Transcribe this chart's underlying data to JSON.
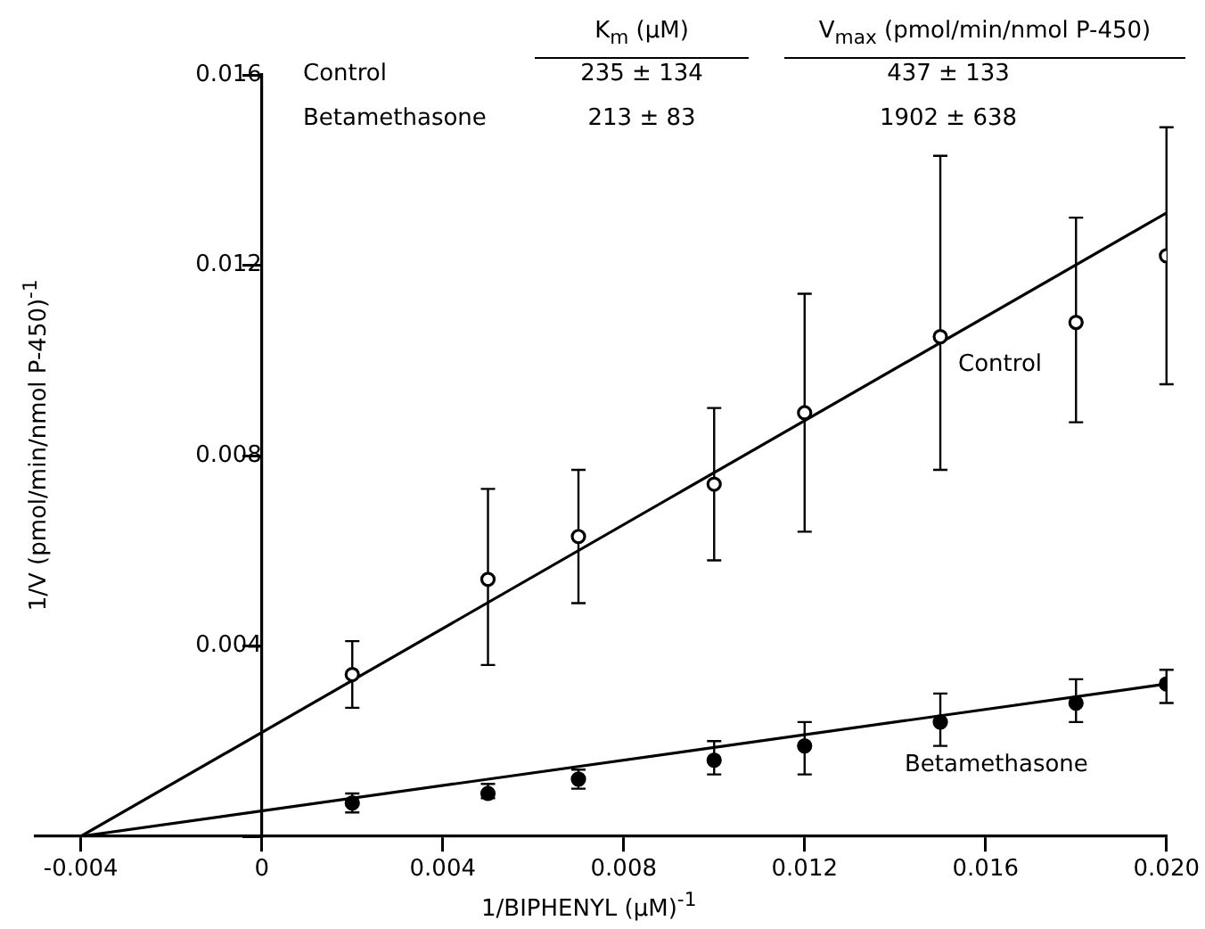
{
  "chart_data": {
    "type": "scatter",
    "xlabel": "1/BIPHENYL (μM)$^{-1}$",
    "ylabel": "1/V (pmol/min/nmol P-450)$^{-1}$",
    "xlim": [
      -0.005,
      0.02
    ],
    "ylim": [
      0,
      0.016
    ],
    "xticks": [
      -0.004,
      0,
      0.004,
      0.008,
      0.012,
      0.016,
      {
        "value": 0.02,
        "label": "0.020"
      }
    ],
    "yticks": [
      {
        "value": 0,
        "label": null
      },
      0.004,
      0.008,
      0.012,
      0.016
    ],
    "grid": false,
    "legend": false,
    "annotations": [
      "K$_{m}$ (μM)",
      "V$_{max}$ (pmol/min/nmol P-450)",
      "Control",
      "235 ± 134",
      "437 ± 133",
      "Betamethasone",
      "213 ± 83",
      "1902 ± 638"
    ],
    "series": [
      {
        "name": "Control",
        "marker": "circle",
        "color": "#000000",
        "x": [
          0.002,
          0.005,
          0.007,
          0.01,
          0.012,
          0.015,
          0.018,
          0.02
        ],
        "values": [
          0.0034,
          0.0054,
          0.0063,
          0.0074,
          0.0089,
          0.0105,
          0.0108,
          0.0122
        ],
        "errors": [
          [
            0.0027,
            0.0041
          ],
          [
            0.0036,
            0.0073
          ],
          [
            0.0049,
            0.0077
          ],
          [
            0.0058,
            0.009
          ],
          [
            0.0064,
            0.0114
          ],
          [
            0.0077,
            0.0143
          ],
          [
            0.0087,
            0.013
          ],
          [
            0.0095,
            0.0149
          ]
        ]
      },
      {
        "name": "Betamethasone",
        "marker": "circle",
        "color": "#000000",
        "x": [
          0.002,
          0.005,
          0.007,
          0.01,
          0.012,
          0.015,
          0.018,
          0.02
        ],
        "values": [
          0.0007,
          0.0009,
          0.0012,
          0.0016,
          0.0019,
          0.0024,
          0.0028,
          0.0032
        ],
        "errors": [
          [
            0.0005,
            0.0009
          ],
          [
            0.0008,
            0.0011
          ],
          [
            0.001,
            0.0014
          ],
          [
            0.0013,
            0.002
          ],
          [
            0.0013,
            0.0024
          ],
          [
            0.0019,
            0.003
          ],
          [
            0.0024,
            0.0033
          ],
          [
            0.0028,
            0.0035
          ]
        ]
      },
      {
        "type": "line",
        "marker": "none",
        "color": "#000000",
        "x": [
          -0.004,
          0.02
        ],
        "values": [
          0,
          0.0131
        ]
      },
      {
        "type": "line",
        "marker": "none",
        "color": "#000000",
        "x": [
          -0.004,
          0.02
        ],
        "values": [
          0,
          0.0032
        ]
      }
    ]
  }
}
